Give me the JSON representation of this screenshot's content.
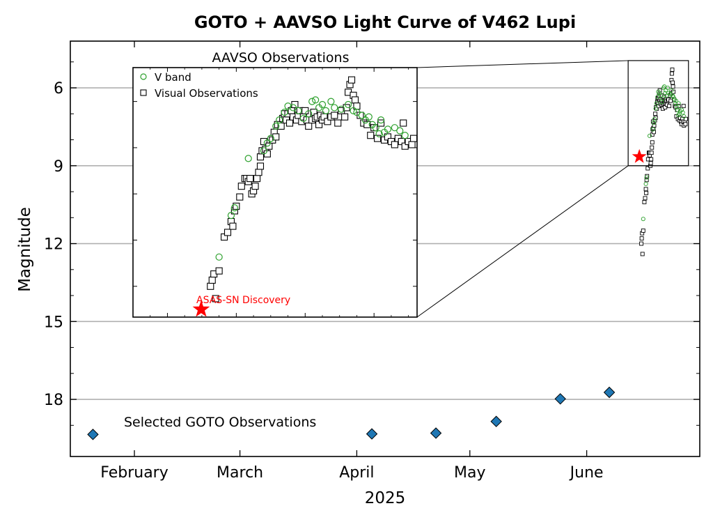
{
  "chart_data": {
    "type": "scatter",
    "title": "GOTO + AAVSO Light Curve of V462 Lupi",
    "xlabel": "2025",
    "ylabel": "Magnitude",
    "y_inverted": true,
    "ylim": [
      20.2,
      4.2
    ],
    "xlim_day_of_year": [
      15,
      182
    ],
    "y_ticks": [
      {
        "value": 6,
        "label": "6"
      },
      {
        "value": 9,
        "label": "9"
      },
      {
        "value": 12,
        "label": "12"
      },
      {
        "value": 15,
        "label": "15"
      },
      {
        "value": 18,
        "label": "18"
      }
    ],
    "x_ticks": [
      {
        "doy": 32,
        "label": "February"
      },
      {
        "doy": 60,
        "label": "March"
      },
      {
        "doy": 91,
        "label": "April"
      },
      {
        "doy": 121,
        "label": "May"
      },
      {
        "doy": 152,
        "label": "June"
      }
    ],
    "grid": "horizontal",
    "goto_series": {
      "label": "Selected GOTO Observations",
      "marker": "diamond",
      "color": "#1f77b4",
      "points": [
        {
          "doy": 21,
          "mag": 19.35
        },
        {
          "doy": 95,
          "mag": 19.33
        },
        {
          "doy": 112,
          "mag": 19.3
        },
        {
          "doy": 128,
          "mag": 18.85
        },
        {
          "doy": 145,
          "mag": 17.98
        },
        {
          "doy": 158,
          "mag": 17.73
        }
      ]
    },
    "zoom_box": {
      "doy": [
        163,
        179
      ],
      "mag": [
        4.95,
        9.0
      ]
    },
    "inset": {
      "title": "AAVSO Observations",
      "xlim_doy": [
        162.0,
        178.5
      ],
      "ylim": [
        13.0,
        4.9
      ],
      "legend": [
        "V band",
        "Visual Observations"
      ],
      "discovery": {
        "label": "ASAS-SN Discovery",
        "doy": 165.96,
        "mag": 12.75,
        "color": "#ff0000"
      },
      "v_band_color": "#2ca02c",
      "v_band": [
        [
          167.0,
          11.05
        ],
        [
          167.7,
          9.7
        ],
        [
          167.9,
          9.45
        ],
        [
          168.7,
          7.85
        ],
        [
          169.6,
          7.6
        ],
        [
          169.8,
          7.35
        ],
        [
          170.0,
          7.2
        ],
        [
          170.3,
          6.8
        ],
        [
          170.5,
          6.6
        ],
        [
          170.8,
          6.35
        ],
        [
          171.0,
          6.15
        ],
        [
          171.3,
          6.2
        ],
        [
          171.6,
          6.3
        ],
        [
          171.9,
          6.55
        ],
        [
          172.2,
          6.4
        ],
        [
          172.4,
          6.0
        ],
        [
          172.6,
          5.95
        ],
        [
          172.8,
          6.2
        ],
        [
          173.0,
          6.1
        ],
        [
          173.2,
          6.3
        ],
        [
          173.5,
          6.0
        ],
        [
          173.7,
          6.2
        ],
        [
          174.1,
          6.25
        ],
        [
          174.5,
          6.1
        ],
        [
          174.8,
          6.3
        ],
        [
          175.0,
          6.35
        ],
        [
          175.3,
          6.45
        ],
        [
          175.5,
          6.6
        ],
        [
          175.7,
          6.5
        ],
        [
          175.9,
          6.75
        ],
        [
          176.1,
          6.85
        ],
        [
          176.3,
          7.05
        ],
        [
          176.4,
          6.6
        ],
        [
          176.6,
          7.0
        ],
        [
          176.8,
          6.9
        ],
        [
          177.2,
          6.85
        ],
        [
          177.5,
          6.95
        ],
        [
          177.8,
          7.1
        ]
      ],
      "visual": [
        [
          166.5,
          12.0
        ],
        [
          166.6,
          11.8
        ],
        [
          166.7,
          11.6
        ],
        [
          166.8,
          12.4
        ],
        [
          167.0,
          11.5
        ],
        [
          167.3,
          10.4
        ],
        [
          167.5,
          10.25
        ],
        [
          167.7,
          9.9
        ],
        [
          167.8,
          10.05
        ],
        [
          167.9,
          9.55
        ],
        [
          168.0,
          9.4
        ],
        [
          168.2,
          9.1
        ],
        [
          168.3,
          8.75
        ],
        [
          168.5,
          8.5
        ],
        [
          168.6,
          8.5
        ],
        [
          168.7,
          8.6
        ],
        [
          168.8,
          8.5
        ],
        [
          168.9,
          9.0
        ],
        [
          169.0,
          8.9
        ],
        [
          169.1,
          8.75
        ],
        [
          169.2,
          8.5
        ],
        [
          169.3,
          8.3
        ],
        [
          169.4,
          8.1
        ],
        [
          169.4,
          7.8
        ],
        [
          169.5,
          7.6
        ],
        [
          169.6,
          7.3
        ],
        [
          169.7,
          7.55
        ],
        [
          169.8,
          7.7
        ],
        [
          169.9,
          7.45
        ],
        [
          170.1,
          7.25
        ],
        [
          170.2,
          7.0
        ],
        [
          170.3,
          7.15
        ],
        [
          170.4,
          6.75
        ],
        [
          170.6,
          6.8
        ],
        [
          170.7,
          6.55
        ],
        [
          170.8,
          6.4
        ],
        [
          170.9,
          6.6
        ],
        [
          171.0,
          6.4
        ],
        [
          171.1,
          6.7
        ],
        [
          171.2,
          6.3
        ],
        [
          171.3,
          6.5
        ],
        [
          171.4,
          6.1
        ],
        [
          171.5,
          6.6
        ],
        [
          171.6,
          6.45
        ],
        [
          171.7,
          6.3
        ],
        [
          171.8,
          6.65
        ],
        [
          171.9,
          6.5
        ],
        [
          172.0,
          6.3
        ],
        [
          172.1,
          6.6
        ],
        [
          172.2,
          6.8
        ],
        [
          172.4,
          6.6
        ],
        [
          172.5,
          6.35
        ],
        [
          172.6,
          6.55
        ],
        [
          172.7,
          6.5
        ],
        [
          172.8,
          6.75
        ],
        [
          172.9,
          6.45
        ],
        [
          173.0,
          6.6
        ],
        [
          173.1,
          6.5
        ],
        [
          173.3,
          6.65
        ],
        [
          173.5,
          6.5
        ],
        [
          173.7,
          6.45
        ],
        [
          173.9,
          6.7
        ],
        [
          174.1,
          6.3
        ],
        [
          174.3,
          6.5
        ],
        [
          174.4,
          6.2
        ],
        [
          174.5,
          5.7
        ],
        [
          174.6,
          5.45
        ],
        [
          174.7,
          5.3
        ],
        [
          174.8,
          5.8
        ],
        [
          174.9,
          5.95
        ],
        [
          175.0,
          6.15
        ],
        [
          175.2,
          6.45
        ],
        [
          175.4,
          6.7
        ],
        [
          175.6,
          6.75
        ],
        [
          175.8,
          7.1
        ],
        [
          176.0,
          6.85
        ],
        [
          176.2,
          7.2
        ],
        [
          176.4,
          6.7
        ],
        [
          176.6,
          7.25
        ],
        [
          176.8,
          7.15
        ],
        [
          177.0,
          7.3
        ],
        [
          177.2,
          7.4
        ],
        [
          177.4,
          7.2
        ],
        [
          177.6,
          7.3
        ],
        [
          177.7,
          6.7
        ],
        [
          177.8,
          7.45
        ],
        [
          178.0,
          7.3
        ],
        [
          178.2,
          7.4
        ],
        [
          178.3,
          7.2
        ]
      ]
    }
  }
}
